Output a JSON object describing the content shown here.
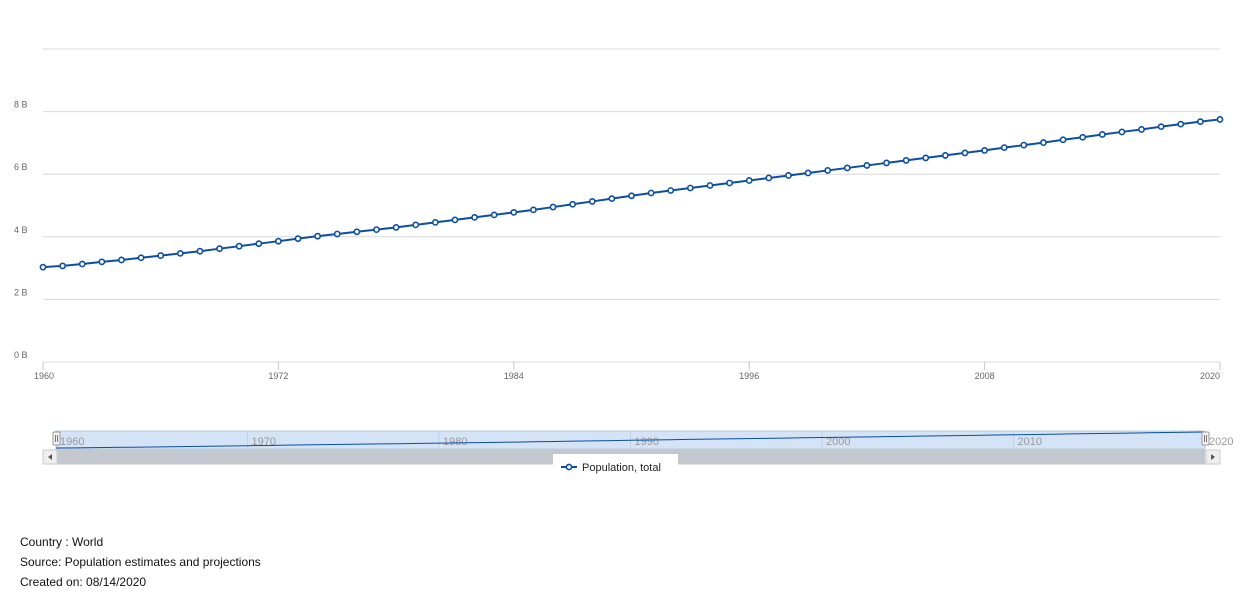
{
  "chart_data": {
    "type": "line",
    "x": [
      1960,
      1961,
      1962,
      1963,
      1964,
      1965,
      1966,
      1967,
      1968,
      1969,
      1970,
      1971,
      1972,
      1973,
      1974,
      1975,
      1976,
      1977,
      1978,
      1979,
      1980,
      1981,
      1982,
      1983,
      1984,
      1985,
      1986,
      1987,
      1988,
      1989,
      1990,
      1991,
      1992,
      1993,
      1994,
      1995,
      1996,
      1997,
      1998,
      1999,
      2000,
      2001,
      2002,
      2003,
      2004,
      2005,
      2006,
      2007,
      2008,
      2009,
      2010,
      2011,
      2012,
      2013,
      2014,
      2015,
      2016,
      2017,
      2018,
      2019,
      2020
    ],
    "series": [
      {
        "name": "Population, total",
        "values": [
          3.03,
          3.07,
          3.13,
          3.2,
          3.26,
          3.33,
          3.4,
          3.47,
          3.54,
          3.62,
          3.7,
          3.78,
          3.86,
          3.94,
          4.02,
          4.09,
          4.16,
          4.23,
          4.3,
          4.38,
          4.46,
          4.54,
          4.62,
          4.7,
          4.78,
          4.86,
          4.95,
          5.04,
          5.13,
          5.22,
          5.31,
          5.4,
          5.48,
          5.56,
          5.64,
          5.72,
          5.8,
          5.88,
          5.96,
          6.04,
          6.12,
          6.2,
          6.28,
          6.36,
          6.44,
          6.52,
          6.6,
          6.68,
          6.76,
          6.85,
          6.93,
          7.01,
          7.1,
          7.18,
          7.27,
          7.35,
          7.43,
          7.52,
          7.6,
          7.68,
          7.75
        ],
        "color": "#0b4ea2"
      }
    ],
    "ylim": [
      0,
      10
    ],
    "yticks": [
      "0 B",
      "2 B",
      "4 B",
      "6 B",
      "8 B"
    ],
    "ytick_values": [
      0,
      2,
      4,
      6,
      8
    ],
    "xticks": [
      "1960",
      "1972",
      "1984",
      "1996",
      "2008",
      "2020"
    ],
    "xtick_values": [
      1960,
      1972,
      1984,
      1996,
      2008,
      2020
    ],
    "grid": true,
    "legend": "bottom-center",
    "navigator_ticks": [
      "1960",
      "1970",
      "1980",
      "1990",
      "2000",
      "2010",
      "2020"
    ],
    "navigator_tick_values": [
      1960,
      1970,
      1980,
      1990,
      2000,
      2010,
      2020
    ]
  },
  "footer": {
    "country": "Country : World",
    "source": "Source: Population estimates and projections",
    "created": "Created on: 08/14/2020"
  }
}
